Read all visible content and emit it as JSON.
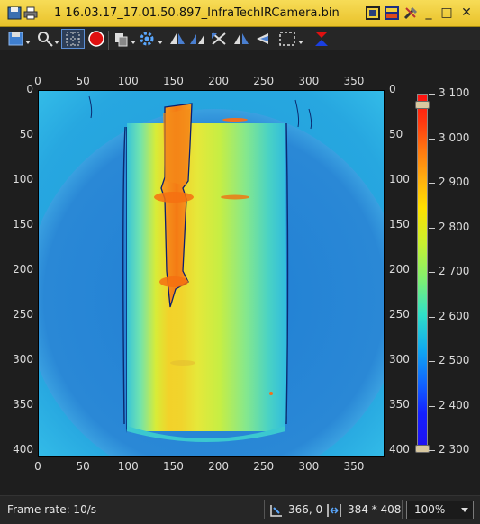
{
  "window": {
    "title": "1 16.03.17_17.01.50.897_InfraTechIRCamera.bin",
    "accent_color": "#f0cf3c",
    "minimize_glyph": "_",
    "maximize_glyph": "□",
    "close_glyph": "✕"
  },
  "toolbar": {
    "icons": [
      "save-dropdown",
      "pointer-tool",
      "grid-select",
      "record",
      "copy-dropdown",
      "settings-dropdown",
      "flip-horizontal",
      "rotate-left",
      "rotate-right",
      "mirror",
      "triangle-left",
      "selection-dropdown",
      "colorbar-range"
    ]
  },
  "image": {
    "x_ticks": [
      "0",
      "50",
      "100",
      "150",
      "200",
      "250",
      "300",
      "350"
    ],
    "y_ticks": [
      "0",
      "50",
      "100",
      "150",
      "200",
      "250",
      "300",
      "350",
      "400"
    ],
    "x_range": [
      0,
      384
    ],
    "y_range": [
      0,
      408
    ]
  },
  "colorbar": {
    "labels": [
      "3 100",
      "3 000",
      "2 900",
      "2 800",
      "2 700",
      "2 600",
      "2 500",
      "2 400",
      "2 300"
    ],
    "min": 2300,
    "max": 3100
  },
  "status": {
    "frame_rate": "Frame rate: 10/s",
    "cursor_position": "366, 0",
    "image_size": "384 * 408",
    "zoom": "100%"
  }
}
